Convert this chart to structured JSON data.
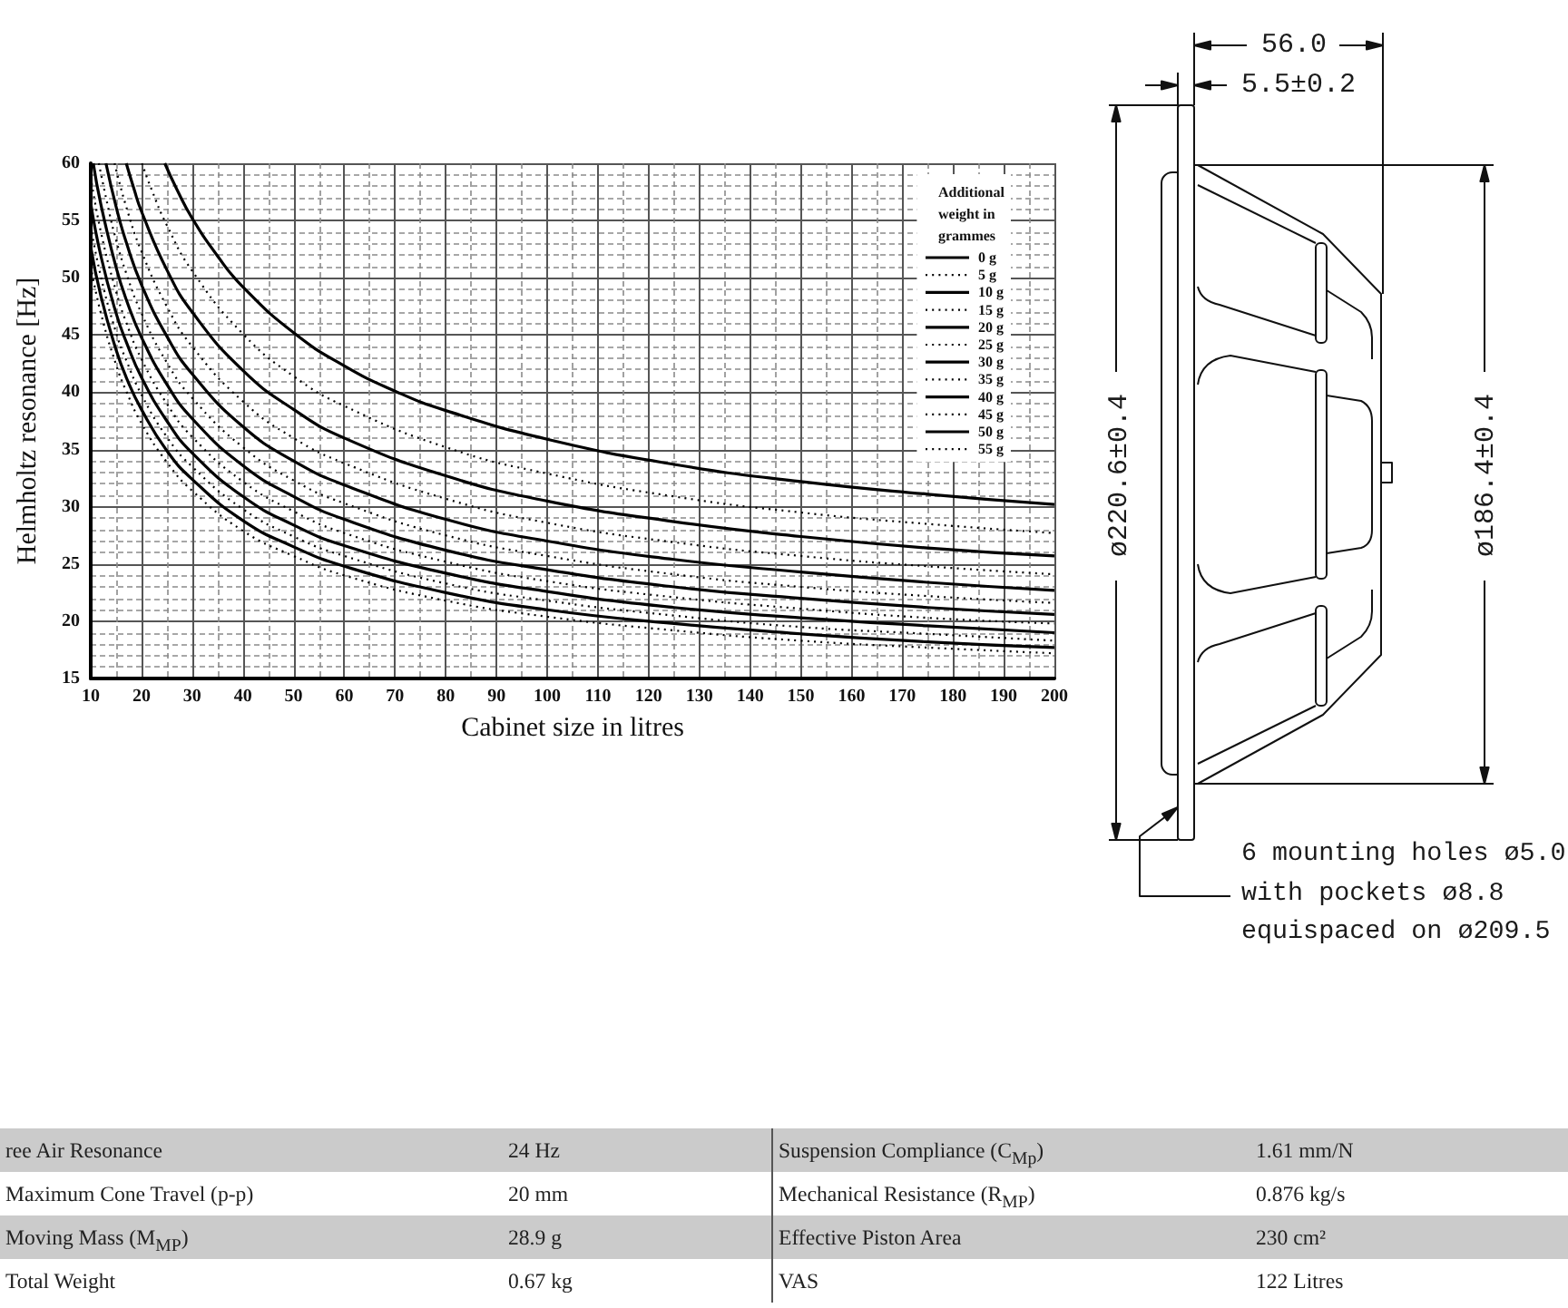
{
  "chart_data": [
    {
      "type": "line",
      "xlabel": "Cabinet size in litres",
      "ylabel": "Helmholtz resonance [Hz]",
      "legend_title": "Additional weight in grammes",
      "legend": "top right",
      "grid": true,
      "marker": "none",
      "xlim": [
        10,
        200
      ],
      "ylim": [
        15,
        60
      ],
      "xticks": [
        10,
        20,
        30,
        40,
        50,
        60,
        70,
        80,
        90,
        100,
        110,
        120,
        130,
        140,
        150,
        160,
        170,
        180,
        190,
        200
      ],
      "yticks": [
        15,
        20,
        25,
        30,
        35,
        40,
        45,
        50,
        55,
        60
      ],
      "series": [
        {
          "name": "0 g",
          "color": "#000000",
          "line_style": "solid",
          "x": [
            24.6,
            27,
            30,
            35,
            40,
            50,
            60,
            70,
            80,
            100,
            125,
            150,
            175,
            200
          ],
          "values": [
            60,
            57.7,
            55.2,
            51.9,
            49.2,
            45.2,
            42.3,
            40.1,
            38.4,
            35.9,
            33.7,
            32.2,
            31.1,
            30.2
          ]
        },
        {
          "name": "5 g",
          "color": "#000000",
          "line_style": "dotted",
          "x": [
            20.1,
            22,
            25,
            30,
            40,
            50,
            60,
            80,
            100,
            125,
            150,
            175,
            200
          ],
          "values": [
            60,
            57.7,
            54.6,
            50.6,
            45.1,
            41.4,
            38.8,
            35.2,
            32.9,
            30.9,
            29.5,
            28.5,
            27.7
          ]
        },
        {
          "name": "10 g",
          "color": "#000000",
          "line_style": "solid",
          "x": [
            17,
            18.5,
            20,
            25,
            30,
            40,
            50,
            60,
            80,
            100,
            125,
            150,
            175,
            200
          ],
          "values": [
            60,
            57.8,
            55.8,
            50.7,
            47.0,
            41.9,
            38.5,
            36.0,
            32.7,
            30.5,
            28.7,
            27.4,
            26.4,
            25.7
          ]
        },
        {
          "name": "15 g",
          "color": "#000000",
          "line_style": "dotted",
          "x": [
            14.7,
            17,
            20,
            25,
            30,
            40,
            50,
            60,
            80,
            100,
            125,
            150,
            175,
            200
          ],
          "values": [
            60,
            56.2,
            52.3,
            47.5,
            44.0,
            39.2,
            36.0,
            33.8,
            30.7,
            28.6,
            26.9,
            25.7,
            24.8,
            24.1
          ]
        },
        {
          "name": "20 g",
          "color": "#000000",
          "line_style": "solid",
          "x": [
            13,
            15,
            17,
            20,
            25,
            30,
            40,
            50,
            60,
            80,
            100,
            125,
            150,
            175,
            200
          ],
          "values": [
            60,
            56.2,
            53.1,
            49.4,
            44.9,
            41.6,
            37.0,
            34.0,
            31.9,
            28.9,
            27.0,
            25.4,
            24.3,
            23.4,
            22.7
          ]
        },
        {
          "name": "25 g",
          "color": "#000000",
          "line_style": "dotted",
          "x": [
            11.6,
            13.5,
            15,
            17,
            20,
            25,
            30,
            40,
            50,
            60,
            80,
            100,
            125,
            150,
            175,
            200
          ],
          "values": [
            60,
            56.0,
            53.3,
            50.4,
            46.9,
            42.6,
            39.5,
            35.2,
            32.3,
            30.3,
            27.5,
            25.7,
            24.1,
            23.0,
            22.2,
            21.6
          ]
        },
        {
          "name": "30 g",
          "color": "#000000",
          "line_style": "solid",
          "x": [
            10.5,
            12,
            15,
            17,
            20,
            25,
            30,
            40,
            50,
            60,
            80,
            100,
            125,
            150,
            175,
            200
          ],
          "values": [
            60,
            56.4,
            50.9,
            48.1,
            44.8,
            40.7,
            37.7,
            33.6,
            30.9,
            28.9,
            26.2,
            24.5,
            23.0,
            22.0,
            21.2,
            20.6
          ]
        },
        {
          "name": "35 g",
          "color": "#000000",
          "line_style": "dotted",
          "x": [
            10,
            12,
            15,
            17,
            20,
            25,
            30,
            40,
            50,
            60,
            80,
            100,
            125,
            150,
            175,
            200
          ],
          "values": [
            58.8,
            54.0,
            48.8,
            46.1,
            42.9,
            39.0,
            36.1,
            32.2,
            29.6,
            27.7,
            25.2,
            23.5,
            22.1,
            21.1,
            20.3,
            19.8
          ]
        },
        {
          "name": "40 g",
          "color": "#000000",
          "line_style": "solid",
          "x": [
            10,
            12,
            15,
            17,
            20,
            25,
            30,
            40,
            50,
            60,
            80,
            100,
            125,
            150,
            175,
            200
          ],
          "values": [
            56.5,
            51.9,
            46.9,
            44.4,
            41.3,
            37.5,
            34.7,
            30.9,
            28.4,
            26.6,
            24.2,
            22.6,
            21.2,
            20.3,
            19.6,
            19.0
          ]
        },
        {
          "name": "45 g",
          "color": "#000000",
          "line_style": "dotted",
          "x": [
            10,
            12,
            15,
            17,
            20,
            25,
            30,
            40,
            50,
            60,
            80,
            100,
            125,
            150,
            175,
            200
          ],
          "values": [
            54.5,
            50.1,
            45.2,
            42.8,
            39.8,
            36.1,
            33.5,
            29.8,
            27.4,
            25.7,
            23.3,
            21.8,
            20.5,
            19.5,
            18.9,
            18.3
          ]
        },
        {
          "name": "50 g",
          "color": "#000000",
          "line_style": "solid",
          "x": [
            10,
            12,
            15,
            17,
            20,
            25,
            30,
            40,
            50,
            60,
            80,
            100,
            125,
            150,
            175,
            200
          ],
          "values": [
            52.7,
            48.4,
            43.7,
            41.3,
            38.5,
            34.9,
            32.4,
            28.8,
            26.5,
            24.8,
            22.5,
            21.0,
            19.8,
            18.9,
            18.2,
            17.7
          ]
        },
        {
          "name": "55 g",
          "color": "#000000",
          "line_style": "dotted",
          "x": [
            10,
            12,
            15,
            17,
            20,
            25,
            30,
            40,
            50,
            60,
            80,
            100,
            125,
            150,
            175,
            200
          ],
          "values": [
            51.0,
            46.9,
            42.4,
            40.1,
            37.3,
            33.9,
            31.4,
            27.9,
            25.7,
            24.0,
            21.8,
            20.4,
            19.2,
            18.3,
            17.7,
            17.2
          ]
        }
      ]
    },
    {
      "type": "other",
      "annotations": [
        "56.0",
        "5.5±0.2",
        "ø220.6±0.4",
        "ø186.4±0.4",
        "6 mounting holes ø5.0",
        "with pockets ø8.8",
        "equispaced on ø209.5"
      ]
    },
    {
      "type": "other",
      "annotations": [
        "ree Air Resonance",
        "24 Hz",
        "Suspension Compliance (C$_{Mp}$)",
        "1.61 mm/N",
        "Maximum Cone Travel (p-p)",
        "20 mm",
        "Mechanical Resistance (R$_{MP}$)",
        "0.876 kg/s",
        "Moving Mass (M$_{MP}$)",
        "28.9 g",
        "Effective Piston Area",
        "230 cm²",
        "Total Weight",
        "0.67 kg",
        "VAS",
        "122 Litres"
      ]
    }
  ]
}
